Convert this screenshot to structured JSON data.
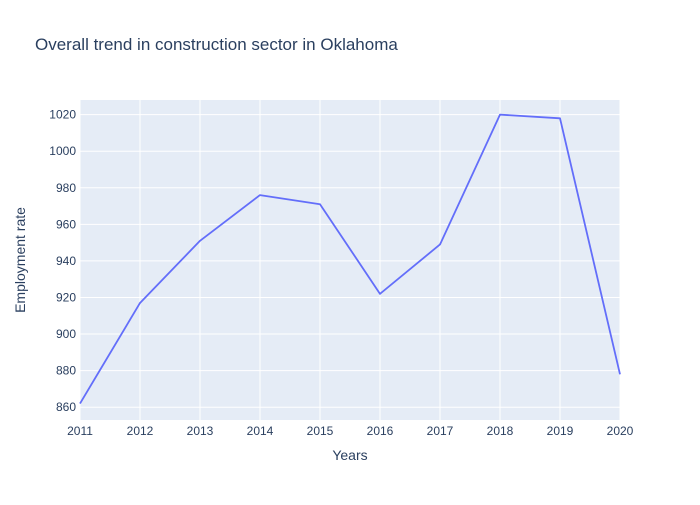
{
  "chart_data": {
    "type": "line",
    "title": "Overall trend in construction sector in Oklahoma",
    "xlabel": "Years",
    "ylabel": "Employment rate",
    "x": [
      2011,
      2012,
      2013,
      2014,
      2015,
      2016,
      2017,
      2018,
      2019,
      2020
    ],
    "series": [
      {
        "values": [
          862,
          917,
          951,
          976,
          971,
          922,
          949,
          1020,
          1018,
          878
        ]
      }
    ],
    "xlim": [
      2011,
      2020
    ],
    "ylim": [
      853,
      1028
    ],
    "x_ticks": [
      "2011",
      "2012",
      "2013",
      "2014",
      "2015",
      "2016",
      "2017",
      "2018",
      "2019",
      "2020"
    ],
    "y_ticks": [
      "860",
      "880",
      "900",
      "920",
      "940",
      "960",
      "980",
      "1000",
      "1020"
    ],
    "grid": true,
    "colors": {
      "plot_background": "#e5ecf6",
      "gridline": "#ffffff",
      "line": "#636efa",
      "text": "#2a3f5f"
    }
  }
}
